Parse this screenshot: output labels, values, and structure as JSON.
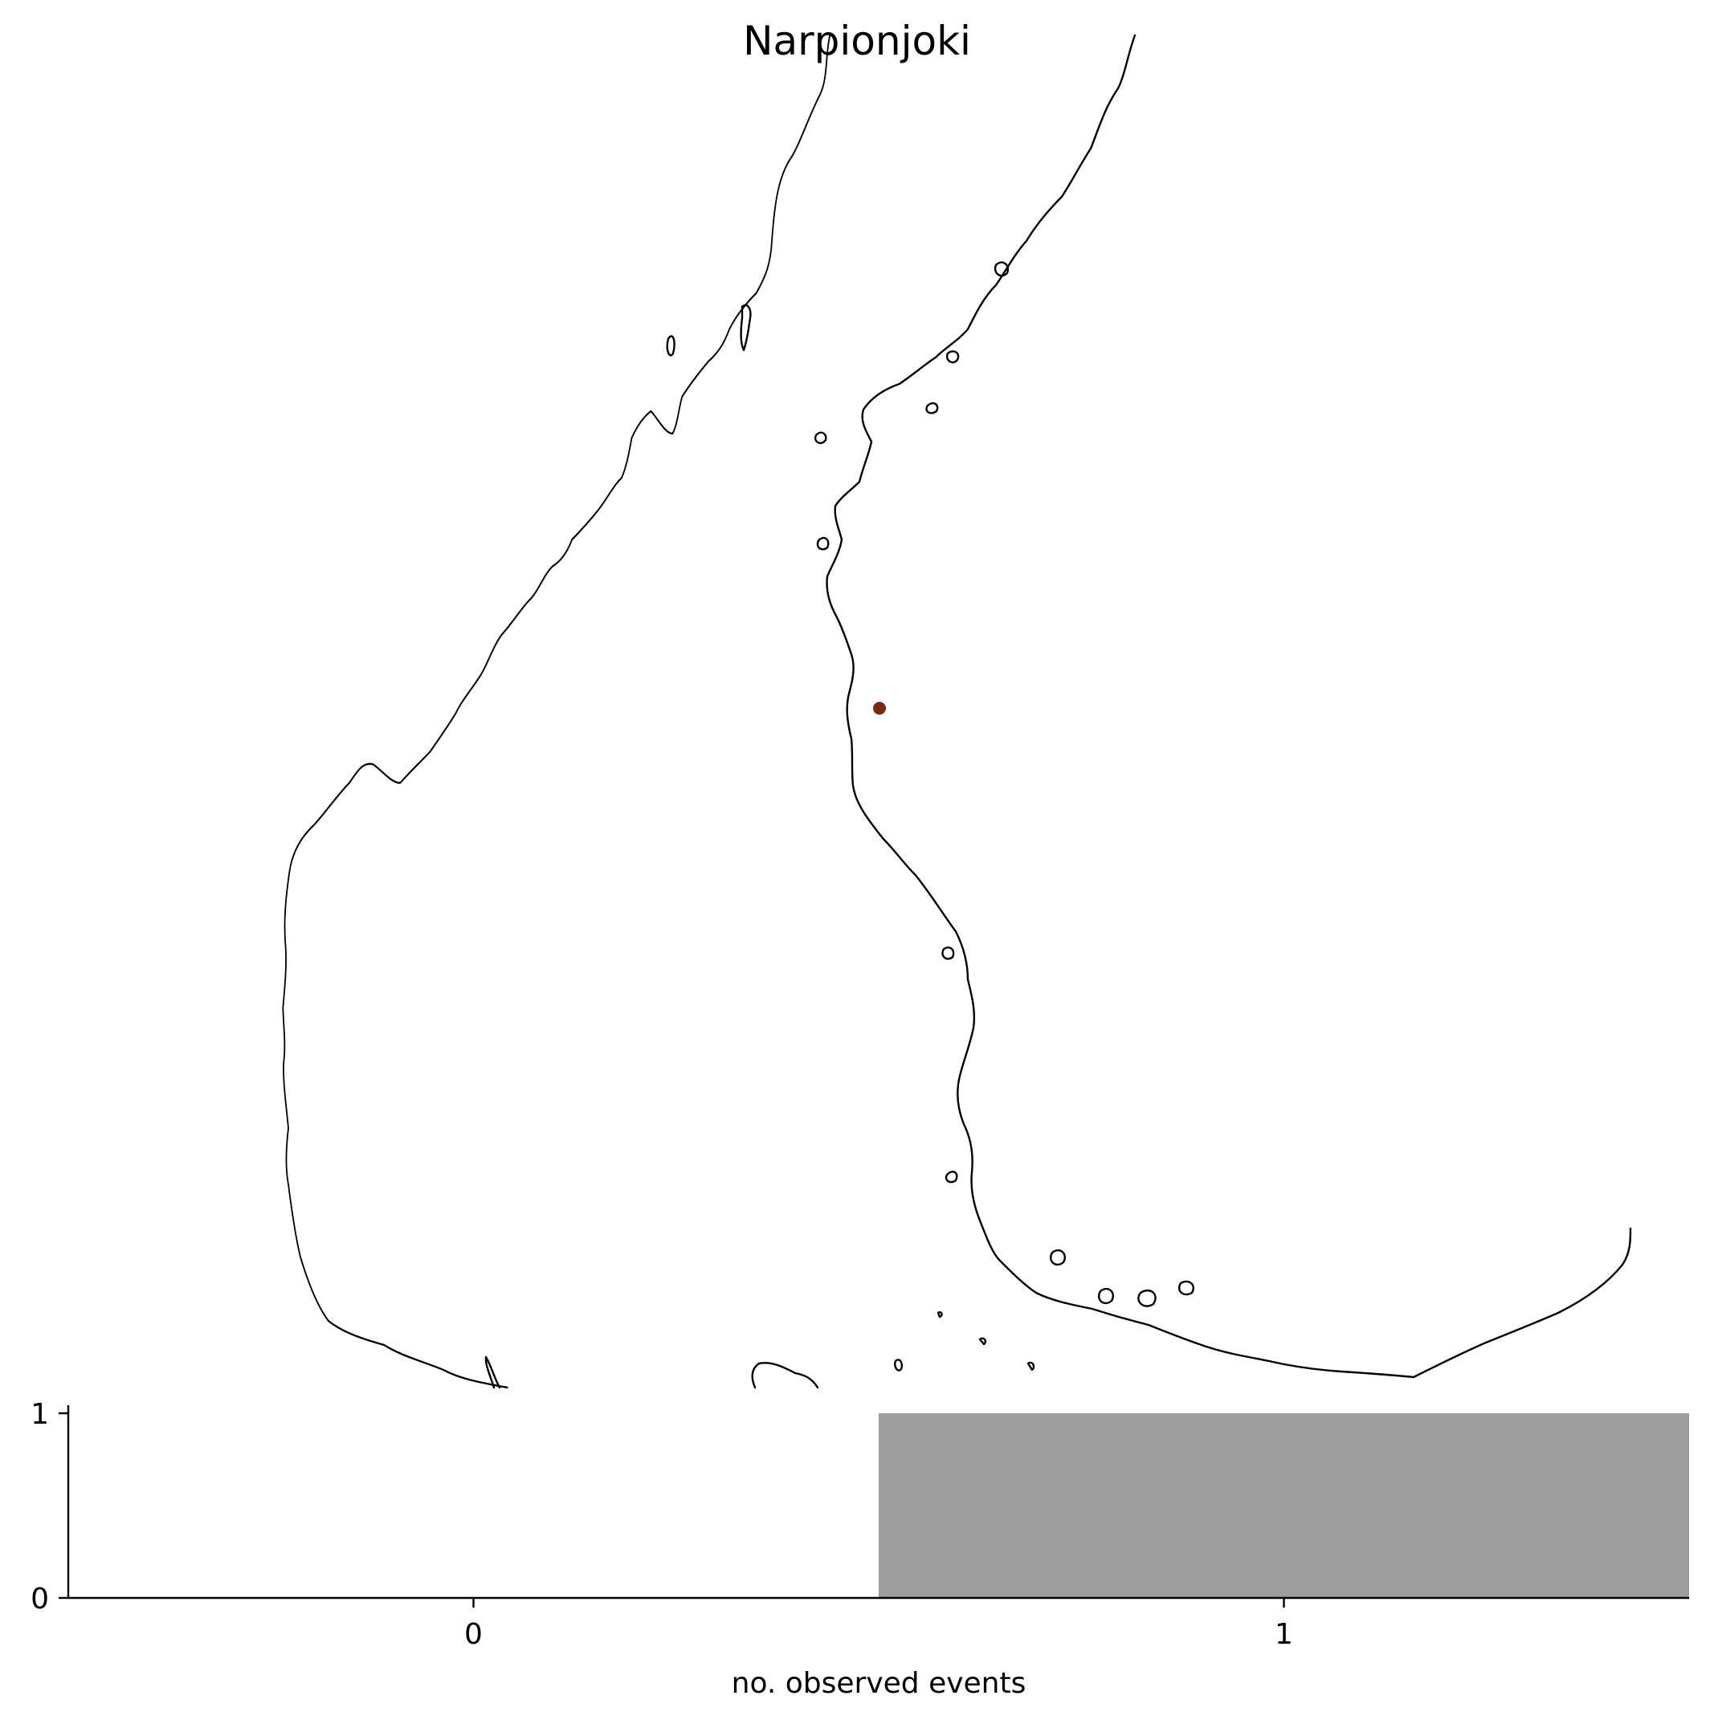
{
  "map": {
    "title": "Narpionjoki",
    "marker_color": "#7b2a10",
    "coast_color": "#000000",
    "location": {
      "name": "Narpionjoki"
    }
  },
  "chart_data": {
    "type": "bar",
    "title": "",
    "xlabel": "no. observed events",
    "ylabel": "",
    "x_ticks": [
      "0",
      "1"
    ],
    "y_ticks": [
      "0",
      "1"
    ],
    "xlim": [
      -0.5,
      1.5
    ],
    "ylim": [
      0,
      1
    ],
    "categories": [
      0,
      1
    ],
    "values": [
      0,
      1
    ],
    "bar_color": "#9e9e9e",
    "grid": false
  }
}
